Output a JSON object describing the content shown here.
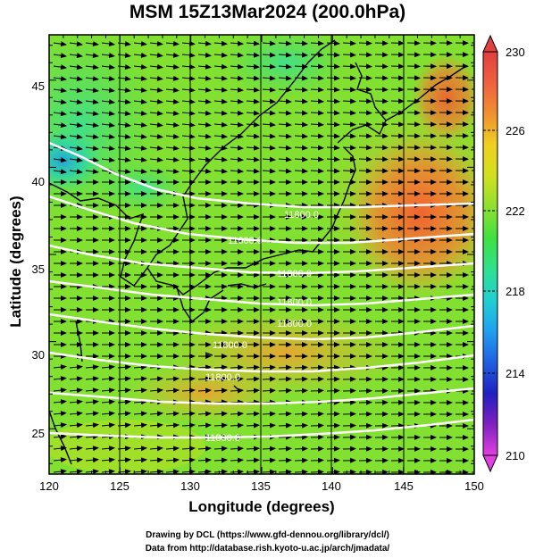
{
  "title": "MSM 15Z13Mar2024 (200.0hPa)",
  "xlabel": "Longitude (degrees)",
  "ylabel": "Latitude  (degrees)",
  "credit_line1": "Drawing by DCL (https://www.gfd-dennou.org/library/dcl/)",
  "credit_line2": "Data from http://database.rish.kyoto-u.ac.jp/arch/jmadata/",
  "map": {
    "lon_range": [
      120,
      150
    ],
    "lat_range": [
      22.4,
      47.6
    ],
    "lon_ticks": [
      "120",
      "125",
      "130",
      "135",
      "140",
      "145",
      "150"
    ],
    "lat_ticks": [
      "25",
      "30",
      "35",
      "40",
      "45"
    ]
  },
  "colorbar": {
    "min": 210,
    "max": 230,
    "tick_labels": [
      "230",
      "226",
      "222",
      "218",
      "214",
      "210"
    ],
    "colors": [
      "#e040e0",
      "#8020c0",
      "#2020c0",
      "#2060e0",
      "#20a0f0",
      "#20d0d0",
      "#30e090",
      "#40e040",
      "#90e030",
      "#d0e020",
      "#f0d020",
      "#f09030",
      "#f06040",
      "#e04040"
    ]
  },
  "contours": {
    "labels": [
      "11800.0",
      "11600.0",
      "11800.0",
      "11800.0",
      "11800.0",
      "11800.0",
      "11800.0",
      "11800.0"
    ]
  }
}
